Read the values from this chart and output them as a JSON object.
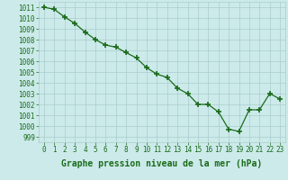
{
  "x": [
    0,
    1,
    2,
    3,
    4,
    5,
    6,
    7,
    8,
    9,
    10,
    11,
    12,
    13,
    14,
    15,
    16,
    17,
    18,
    19,
    20,
    21,
    22,
    23
  ],
  "y": [
    1011,
    1010.8,
    1010.1,
    1009.5,
    1008.7,
    1008.0,
    1007.5,
    1007.3,
    1006.8,
    1006.3,
    1005.4,
    1004.8,
    1004.5,
    1003.5,
    1003.0,
    1002.0,
    1002.0,
    1001.3,
    999.7,
    999.5,
    1001.5,
    1001.5,
    1003.0,
    1002.5
  ],
  "line_color": "#1a6b1a",
  "marker": "+",
  "marker_size": 4,
  "marker_lw": 1.2,
  "bg_color": "#cceaea",
  "grid_color": "#aacccc",
  "xlabel": "Graphe pression niveau de la mer (hPa)",
  "xlabel_color": "#1a6b1a",
  "tick_color": "#1a6b1a",
  "ylim": [
    998.5,
    1011.5
  ],
  "xlim": [
    -0.5,
    23.5
  ],
  "yticks": [
    999,
    1000,
    1001,
    1002,
    1003,
    1004,
    1005,
    1006,
    1007,
    1008,
    1009,
    1010,
    1011
  ],
  "xticks": [
    0,
    1,
    2,
    3,
    4,
    5,
    6,
    7,
    8,
    9,
    10,
    11,
    12,
    13,
    14,
    15,
    16,
    17,
    18,
    19,
    20,
    21,
    22,
    23
  ],
  "xtick_labels": [
    "0",
    "1",
    "2",
    "3",
    "4",
    "5",
    "6",
    "7",
    "8",
    "9",
    "10",
    "11",
    "12",
    "13",
    "14",
    "15",
    "16",
    "17",
    "18",
    "19",
    "20",
    "21",
    "22",
    "23"
  ],
  "tick_fontsize": 5.5,
  "xlabel_fontsize": 7.0
}
